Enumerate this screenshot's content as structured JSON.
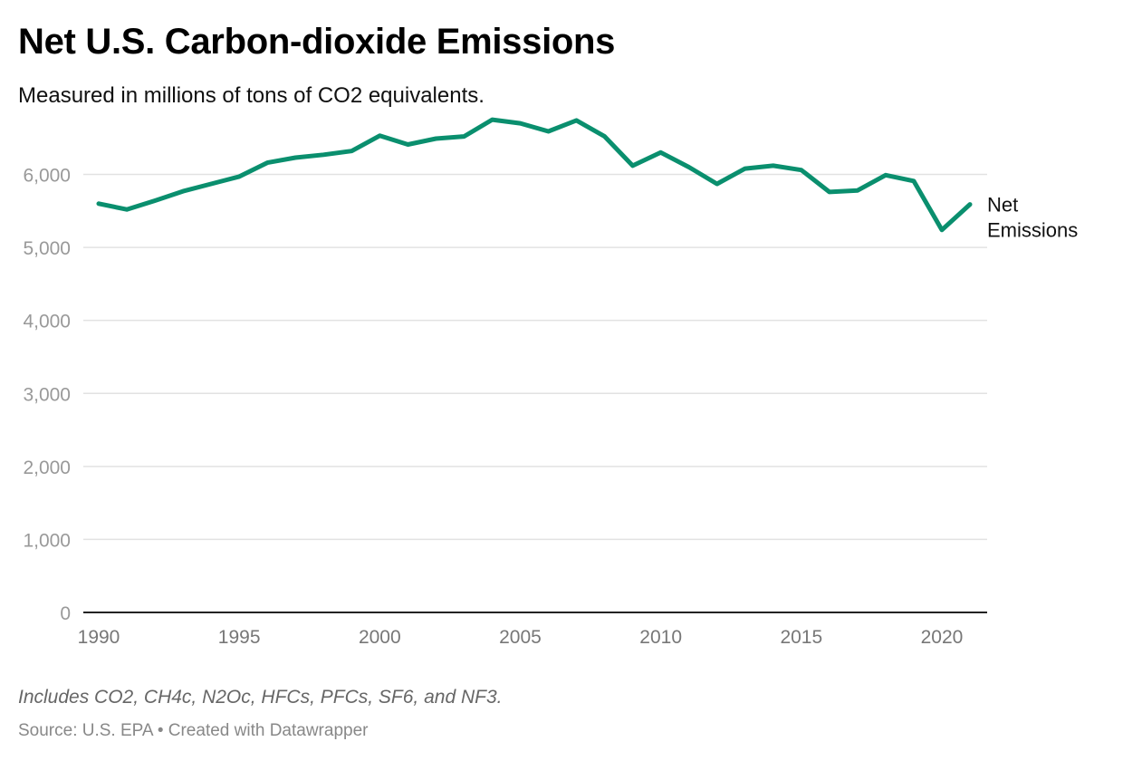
{
  "header": {
    "title": "Net U.S. Carbon-dioxide Emissions",
    "subtitle": "Measured in millions of tons of CO2 equivalents."
  },
  "footer": {
    "notes": "Includes CO2, CH4c, N2Oc, HFCs, PFCs, SF6, and NF3.",
    "source": "Source: U.S. EPA • Created with Datawrapper"
  },
  "chart_data": {
    "type": "line",
    "title": "Net U.S. Carbon-dioxide Emissions",
    "subtitle": "Measured in millions of tons of CO2 equivalents.",
    "xlabel": "",
    "ylabel": "",
    "xlim": [
      1990,
      2021
    ],
    "ylim": [
      0,
      6900
    ],
    "x_ticks": [
      1990,
      1995,
      2000,
      2005,
      2010,
      2015,
      2020
    ],
    "y_ticks": [
      0,
      1000,
      2000,
      3000,
      4000,
      5000,
      6000
    ],
    "y_tick_labels": [
      "0",
      "1,000",
      "2,000",
      "3,000",
      "4,000",
      "5,000",
      "6,000"
    ],
    "grid": "horizontal",
    "legend": "direct label at line end (right)",
    "line_color": "#0a8f6e",
    "x": [
      1990,
      1991,
      1992,
      1993,
      1994,
      1995,
      1996,
      1997,
      1998,
      1999,
      2000,
      2001,
      2002,
      2003,
      2004,
      2005,
      2006,
      2007,
      2008,
      2009,
      2010,
      2011,
      2012,
      2013,
      2014,
      2015,
      2016,
      2017,
      2018,
      2019,
      2020,
      2021
    ],
    "series": [
      {
        "name": "Net Emissions",
        "label_lines": [
          "Net",
          "Emissions"
        ],
        "values": [
          5600,
          5520,
          5640,
          5770,
          5870,
          5970,
          6160,
          6230,
          6270,
          6320,
          6530,
          6410,
          6490,
          6520,
          6750,
          6700,
          6590,
          6740,
          6520,
          6120,
          6300,
          6100,
          5870,
          6080,
          6120,
          6060,
          5760,
          5780,
          5990,
          5910,
          5240,
          5590
        ]
      }
    ]
  }
}
